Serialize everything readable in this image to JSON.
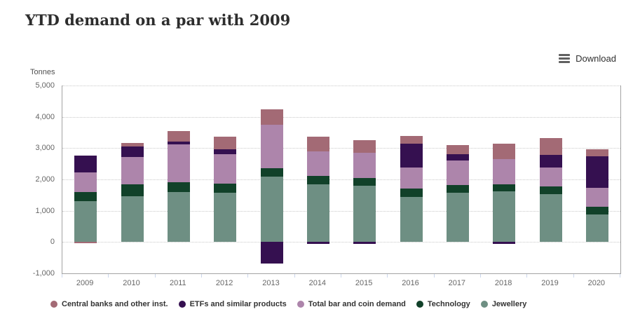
{
  "toolbar": {
    "download_label": "Download"
  },
  "chart_data": {
    "type": "bar",
    "variant": "stacked-column",
    "title": "YTD demand on a par with 2009",
    "xlabel": "",
    "ylabel": "Tonnes",
    "ylim": [
      -1000,
      5000
    ],
    "ytick_interval": 1000,
    "yticklabels": [
      "5,000",
      "4,000",
      "3,000",
      "2,000",
      "1,000",
      "0",
      "-1,000"
    ],
    "grid": "dotted-horizontal",
    "legend_position": "bottom",
    "categories": [
      "2009",
      "2010",
      "2011",
      "2012",
      "2013",
      "2014",
      "2015",
      "2016",
      "2017",
      "2018",
      "2019",
      "2020"
    ],
    "stack_order_bottom_to_top": [
      "Jewellery",
      "Technology",
      "Total bar and coin demand",
      "ETFs and similar products",
      "Central banks and other inst."
    ],
    "series": [
      {
        "name": "Central banks and other inst.",
        "color": "#a36a75",
        "values": [
          -45,
          105,
          335,
          410,
          480,
          470,
          410,
          260,
          290,
          495,
          530,
          215
        ]
      },
      {
        "name": "ETFs and similar products",
        "color": "#351050",
        "values": [
          530,
          345,
          90,
          150,
          -695,
          -60,
          -65,
          745,
          200,
          -65,
          390,
          1015
        ]
      },
      {
        "name": "Total bar and coin demand",
        "color": "#ad85ab",
        "values": [
          640,
          880,
          1195,
          955,
          1390,
          785,
          800,
          680,
          800,
          805,
          610,
          610
        ]
      },
      {
        "name": "Technology",
        "color": "#114129",
        "values": [
          290,
          365,
          315,
          285,
          285,
          260,
          260,
          260,
          245,
          240,
          240,
          230
        ]
      },
      {
        "name": "Jewellery",
        "color": "#6e8f83",
        "values": [
          1300,
          1470,
          1605,
          1575,
          2080,
          1845,
          1790,
          1450,
          1565,
          1610,
          1540,
          890
        ]
      }
    ]
  }
}
